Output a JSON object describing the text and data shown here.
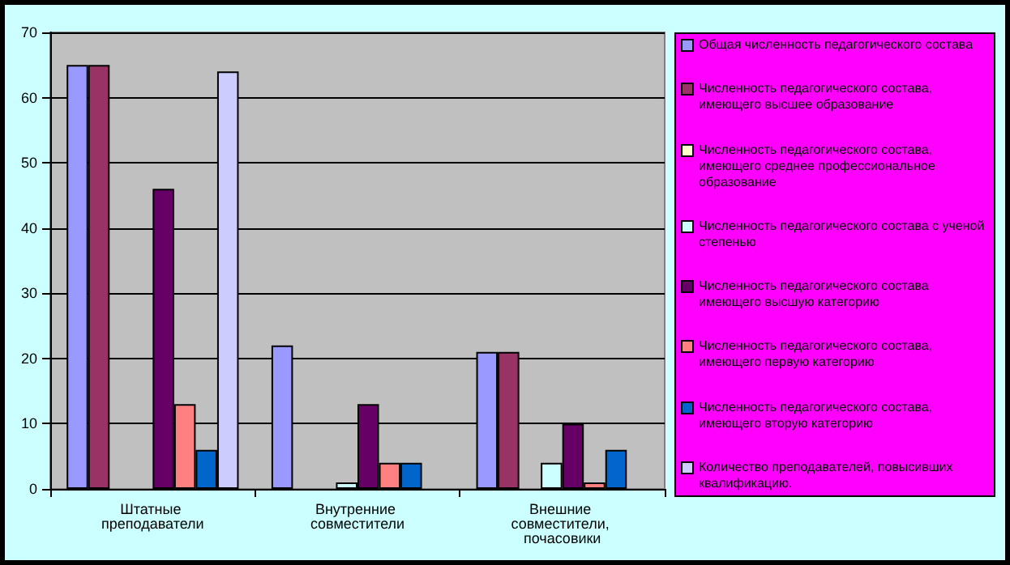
{
  "chart_data": {
    "type": "bar",
    "categories": [
      "Штатные преподаватели",
      "Внутренние совместители",
      "Внешние совместители, почасовики"
    ],
    "series": [
      {
        "name": "Общая численность педагогического состава",
        "color": "#9999ff",
        "values": [
          65,
          22,
          21
        ]
      },
      {
        "name": "Численность педагогического состава, имеющего высшее образование",
        "color": "#993366",
        "values": [
          65,
          null,
          21
        ]
      },
      {
        "name": "Численность педагогического состава, имеющего среднее профессиональное образование",
        "color": "#ffffcc",
        "values": [
          null,
          null,
          null
        ]
      },
      {
        "name": "Численность педагогического состава с ученой степенью",
        "color": "#ccffff",
        "values": [
          null,
          1,
          4
        ]
      },
      {
        "name": "Численность педагогического состава имеющего высшую категорию",
        "color": "#660066",
        "values": [
          46,
          13,
          10
        ]
      },
      {
        "name": "Численность педагогического состава, имеющего первую категорию",
        "color": "#ff8080",
        "values": [
          13,
          4,
          1
        ]
      },
      {
        "name": "Численность педагогического состава, имеющего вторую категорию",
        "color": "#0066cc",
        "values": [
          6,
          4,
          6
        ]
      },
      {
        "name": "Количество преподавателей, повысивших квалификацию.",
        "color": "#ccccff",
        "values": [
          64,
          null,
          null
        ]
      }
    ],
    "ylim": [
      0,
      70
    ],
    "yticks": [
      0,
      10,
      20,
      30,
      40,
      50,
      60,
      70
    ],
    "grid": "y",
    "legend": "right"
  }
}
